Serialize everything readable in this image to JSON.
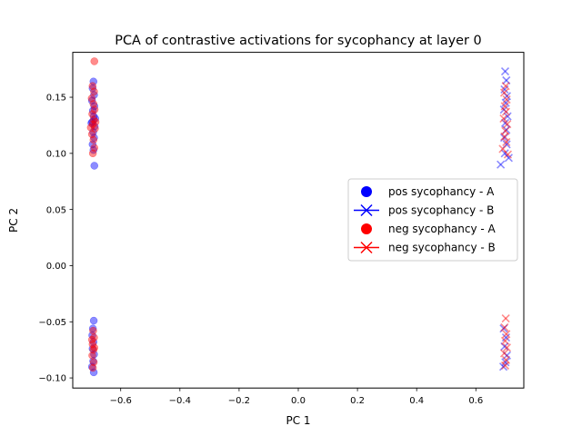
{
  "chart_data": {
    "type": "scatter",
    "title": "PCA of contrastive activations for sycophancy at layer 0",
    "xlabel": "PC 1",
    "ylabel": "PC 2",
    "xlim": [
      -0.762,
      0.762
    ],
    "ylim": [
      -0.109,
      0.19
    ],
    "xticks": [
      -0.6,
      -0.4,
      -0.2,
      0.0,
      0.2,
      0.4,
      0.6
    ],
    "xtick_labels": [
      "−0.6",
      "−0.4",
      "−0.2",
      "0.0",
      "0.2",
      "0.4",
      "0.6"
    ],
    "yticks": [
      -0.1,
      -0.05,
      0.0,
      0.05,
      0.1,
      0.15
    ],
    "ytick_labels": [
      "−0.10",
      "−0.05",
      "0.00",
      "0.05",
      "0.10",
      "0.15"
    ],
    "grid": false,
    "legend_position": "center-right",
    "series": [
      {
        "name": "pos sycophancy - A",
        "marker": "circle",
        "color": "#0000ff",
        "points": [
          [
            -0.692,
            0.164
          ],
          [
            -0.695,
            0.158
          ],
          [
            -0.69,
            0.152
          ],
          [
            -0.697,
            0.147
          ],
          [
            -0.689,
            0.142
          ],
          [
            -0.694,
            0.138
          ],
          [
            -0.691,
            0.133
          ],
          [
            -0.696,
            0.128
          ],
          [
            -0.688,
            0.124
          ],
          [
            -0.693,
            0.119
          ],
          [
            -0.69,
            0.114
          ],
          [
            -0.695,
            0.108
          ],
          [
            -0.692,
            0.103
          ],
          [
            -0.689,
            0.089
          ],
          [
            -0.699,
            0.127
          ],
          [
            -0.686,
            0.131
          ],
          [
            -0.691,
            -0.049
          ],
          [
            -0.694,
            -0.056
          ],
          [
            -0.696,
            -0.062
          ],
          [
            -0.692,
            -0.068
          ],
          [
            -0.695,
            -0.074
          ],
          [
            -0.69,
            -0.079
          ],
          [
            -0.693,
            -0.085
          ],
          [
            -0.697,
            -0.09
          ],
          [
            -0.691,
            -0.095
          ]
        ]
      },
      {
        "name": "pos sycophancy - B",
        "marker": "x",
        "color": "#0000ff",
        "points": [
          [
            0.699,
            0.173
          ],
          [
            0.703,
            0.165
          ],
          [
            0.697,
            0.157
          ],
          [
            0.705,
            0.151
          ],
          [
            0.701,
            0.145
          ],
          [
            0.695,
            0.139
          ],
          [
            0.707,
            0.133
          ],
          [
            0.699,
            0.127
          ],
          [
            0.703,
            0.121
          ],
          [
            0.696,
            0.114
          ],
          [
            0.704,
            0.108
          ],
          [
            0.698,
            0.1
          ],
          [
            0.684,
            0.09
          ],
          [
            0.711,
            0.096
          ],
          [
            0.694,
            -0.056
          ],
          [
            0.702,
            -0.064
          ],
          [
            0.697,
            -0.072
          ],
          [
            0.705,
            -0.08
          ],
          [
            0.7,
            -0.086
          ],
          [
            0.693,
            -0.09
          ]
        ]
      },
      {
        "name": "neg sycophancy - A",
        "marker": "circle",
        "color": "#ff0000",
        "points": [
          [
            -0.689,
            0.182
          ],
          [
            -0.695,
            0.16
          ],
          [
            -0.69,
            0.155
          ],
          [
            -0.698,
            0.149
          ],
          [
            -0.692,
            0.144
          ],
          [
            -0.688,
            0.139
          ],
          [
            -0.696,
            0.135
          ],
          [
            -0.691,
            0.13
          ],
          [
            -0.694,
            0.126
          ],
          [
            -0.687,
            0.122
          ],
          [
            -0.697,
            0.117
          ],
          [
            -0.692,
            0.112
          ],
          [
            -0.689,
            0.105
          ],
          [
            -0.694,
            0.1
          ],
          [
            -0.701,
            0.123
          ],
          [
            -0.685,
            0.128
          ],
          [
            -0.693,
            -0.058
          ],
          [
            -0.69,
            -0.064
          ],
          [
            -0.695,
            -0.07
          ],
          [
            -0.692,
            -0.075
          ],
          [
            -0.696,
            -0.08
          ],
          [
            -0.691,
            -0.086
          ],
          [
            -0.694,
            -0.091
          ],
          [
            -0.697,
            -0.066
          ],
          [
            -0.689,
            -0.073
          ]
        ]
      },
      {
        "name": "neg sycophancy - B",
        "marker": "x",
        "color": "#ff0000",
        "points": [
          [
            0.701,
            0.16
          ],
          [
            0.696,
            0.154
          ],
          [
            0.704,
            0.148
          ],
          [
            0.698,
            0.142
          ],
          [
            0.702,
            0.137
          ],
          [
            0.694,
            0.131
          ],
          [
            0.706,
            0.126
          ],
          [
            0.7,
            0.12
          ],
          [
            0.697,
            0.115
          ],
          [
            0.703,
            0.11
          ],
          [
            0.691,
            0.104
          ],
          [
            0.708,
            0.099
          ],
          [
            0.701,
            -0.047
          ],
          [
            0.697,
            -0.055
          ],
          [
            0.703,
            -0.061
          ],
          [
            0.699,
            -0.067
          ],
          [
            0.705,
            -0.073
          ],
          [
            0.696,
            -0.078
          ],
          [
            0.702,
            -0.084
          ],
          [
            0.699,
            -0.089
          ]
        ]
      }
    ]
  }
}
